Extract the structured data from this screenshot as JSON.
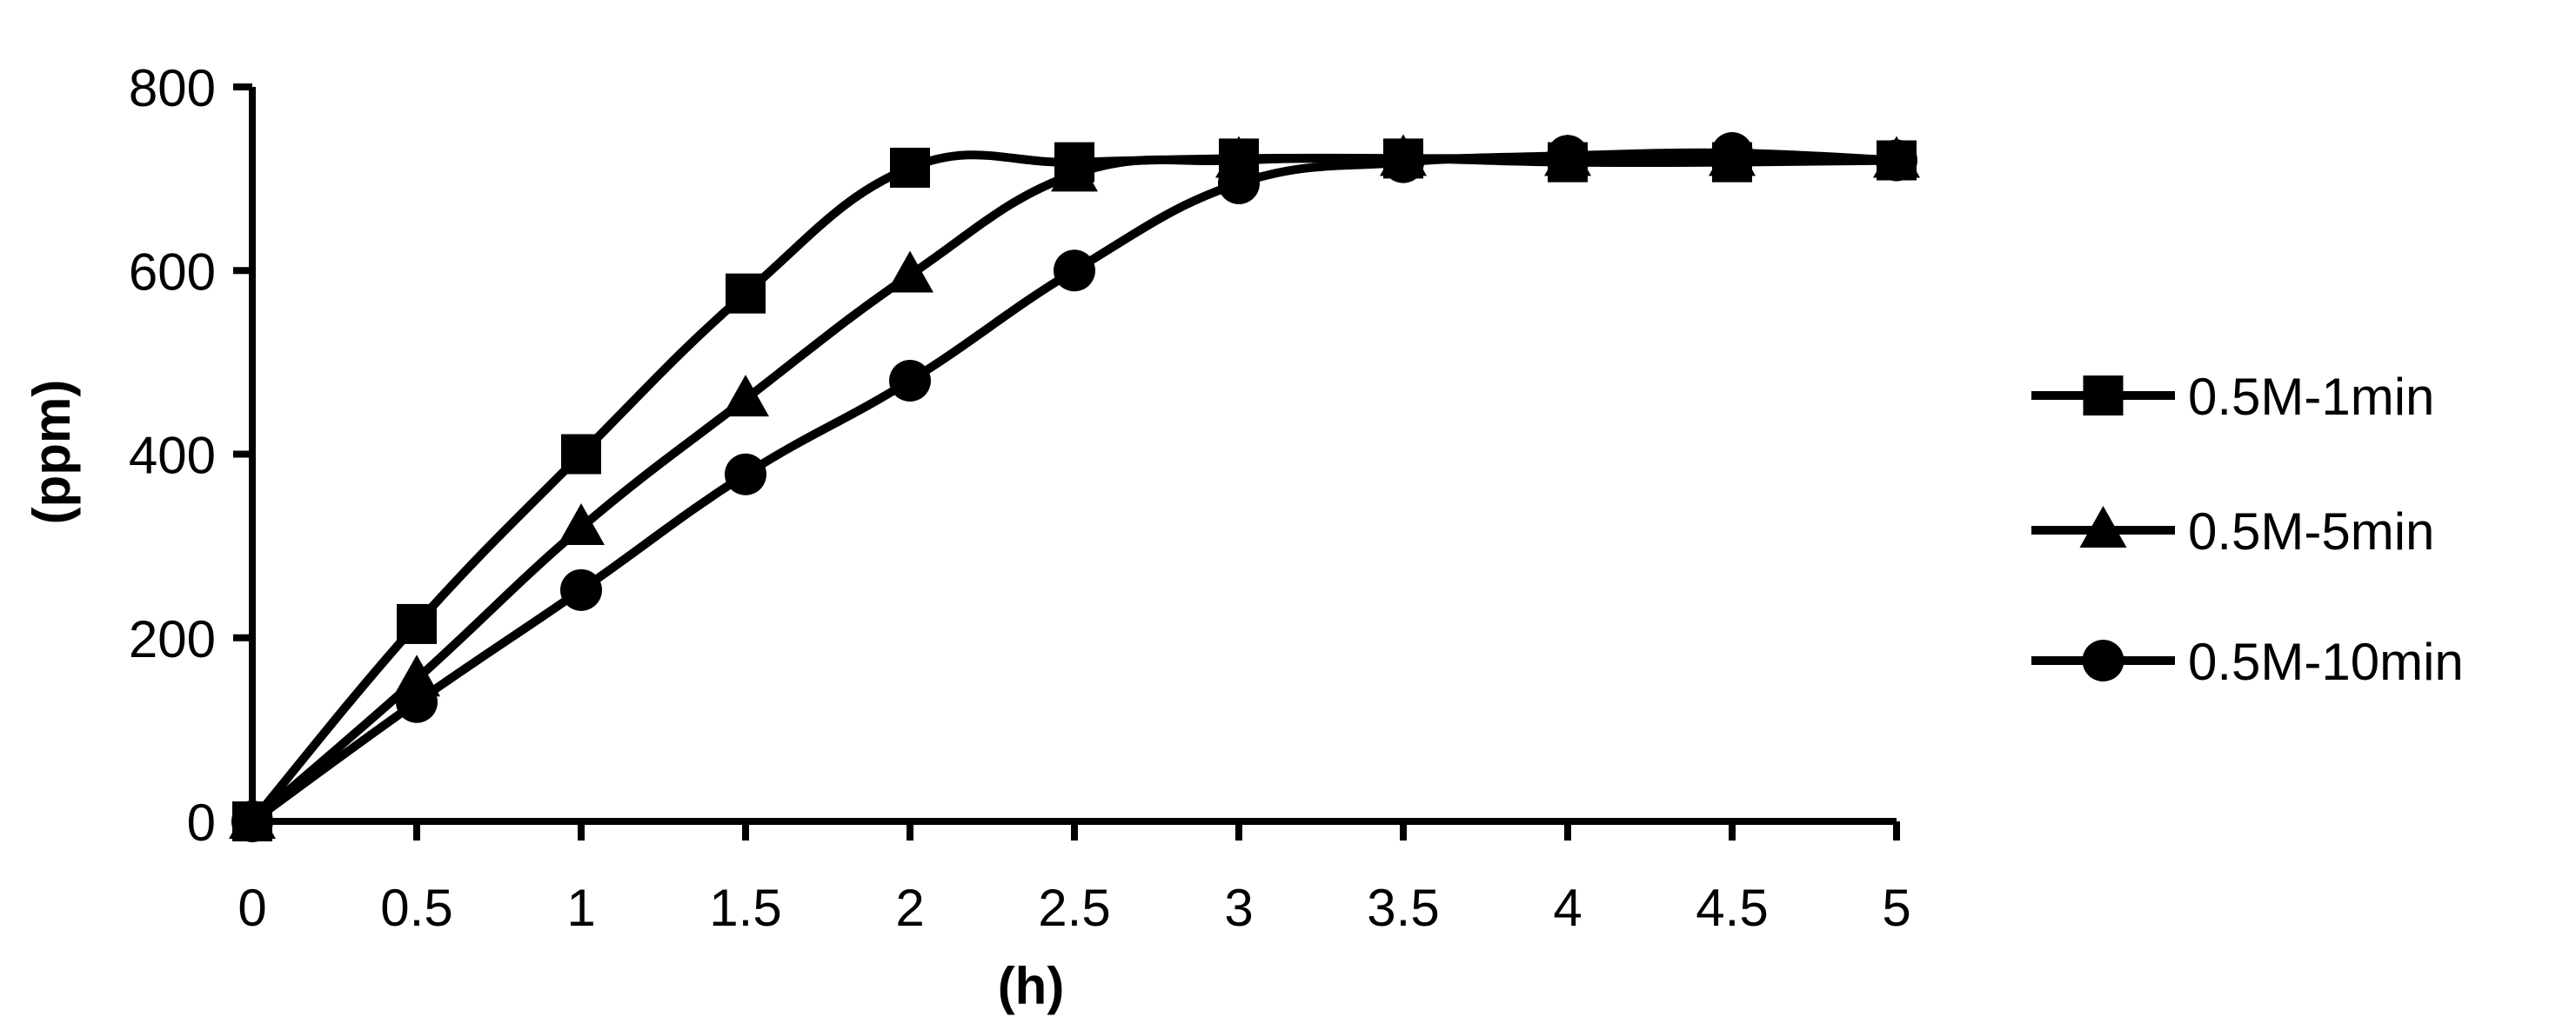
{
  "chart_data": {
    "type": "line",
    "title": "",
    "xlabel": "(h)",
    "ylabel": "(ppm)",
    "x": [
      0,
      0.5,
      1,
      1.5,
      2,
      2.5,
      3,
      3.5,
      4,
      4.5,
      5
    ],
    "xlim": [
      0,
      5
    ],
    "ylim": [
      0,
      800
    ],
    "xticks": [
      "0",
      "0.5",
      "1",
      "1.5",
      "2",
      "2.5",
      "3",
      "3.5",
      "4",
      "4.5",
      "5"
    ],
    "yticks": [
      "0",
      "200",
      "400",
      "600",
      "800"
    ],
    "grid": false,
    "legend_position": "right",
    "series": [
      {
        "name": "0.5M-1min",
        "marker": "square",
        "values": [
          0,
          215,
          400,
          575,
          712,
          718,
          722,
          722,
          718,
          718,
          720
        ]
      },
      {
        "name": "0.5M-5min",
        "marker": "triangle",
        "values": [
          0,
          155,
          320,
          460,
          595,
          705,
          720,
          722,
          722,
          722,
          720
        ]
      },
      {
        "name": "0.5M-10min",
        "marker": "circle",
        "values": [
          0,
          130,
          252,
          378,
          480,
          600,
          695,
          718,
          725,
          728,
          720
        ]
      }
    ],
    "color": "#000000"
  }
}
